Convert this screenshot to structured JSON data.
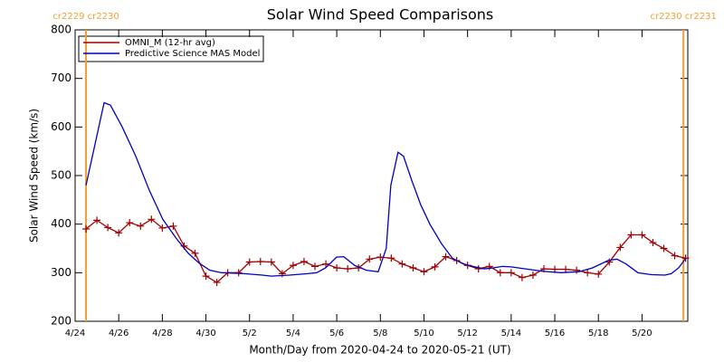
{
  "chart_data": {
    "type": "line",
    "title": "Solar Wind Speed Comparisons",
    "x_label": "Month/Day from 2020-04-24 to 2020-05-21 (UT)",
    "y_label": "Solar Wind Speed (km/s)",
    "xlim": [
      0,
      28.1
    ],
    "ylim": [
      200,
      800
    ],
    "yticks": [
      200,
      300,
      400,
      500,
      600,
      700,
      800
    ],
    "xticks": [
      {
        "value": 0,
        "label": "4/24"
      },
      {
        "value": 2,
        "label": "4/26"
      },
      {
        "value": 4,
        "label": "4/28"
      },
      {
        "value": 6,
        "label": "4/30"
      },
      {
        "value": 8,
        "label": "5/2"
      },
      {
        "value": 10,
        "label": "5/4"
      },
      {
        "value": 12,
        "label": "5/6"
      },
      {
        "value": 14,
        "label": "5/8"
      },
      {
        "value": 16,
        "label": "5/10"
      },
      {
        "value": 18,
        "label": "5/12"
      },
      {
        "value": 20,
        "label": "5/14"
      },
      {
        "value": 22,
        "label": "5/16"
      },
      {
        "value": 24,
        "label": "5/18"
      },
      {
        "value": 26,
        "label": "5/20"
      }
    ],
    "boundaries": [
      {
        "x": 0.5,
        "label": "cr2229 cr2230"
      },
      {
        "x": 27.9,
        "label": "cr2230 cr2231"
      }
    ],
    "boundary_color": "#f0a030",
    "series": [
      {
        "name": "OMNI_M (12-hr avg)",
        "color": "#a00000",
        "markers": true,
        "x": [
          0.5,
          1,
          1.5,
          2,
          2.5,
          3,
          3.5,
          4,
          4.5,
          5,
          5.5,
          6,
          6.5,
          7,
          7.5,
          8,
          8.5,
          9,
          9.5,
          10,
          10.5,
          11,
          11.5,
          12,
          12.5,
          13,
          13.5,
          14,
          14.5,
          15,
          15.5,
          16,
          16.5,
          17,
          17.5,
          18,
          18.5,
          19,
          19.5,
          20,
          20.5,
          21,
          21.5,
          22,
          22.5,
          23,
          23.5,
          24,
          24.5,
          25,
          25.5,
          26,
          26.5,
          27,
          27.5,
          28
        ],
        "values": [
          390,
          408,
          393,
          382,
          403,
          396,
          410,
          392,
          396,
          355,
          340,
          293,
          280,
          300,
          300,
          322,
          323,
          322,
          298,
          315,
          323,
          313,
          318,
          310,
          308,
          310,
          328,
          332,
          330,
          318,
          310,
          302,
          312,
          333,
          325,
          315,
          308,
          313,
          300,
          300,
          290,
          295,
          308,
          307,
          307,
          305,
          300,
          297,
          322,
          352,
          378,
          378,
          362,
          350,
          335,
          330
        ]
      },
      {
        "name": "Predictive Science MAS Model",
        "color": "#0000c0",
        "markers": false,
        "x": [
          0.5,
          1.33,
          1.62,
          2.16,
          2.78,
          3.4,
          4.02,
          4.65,
          5.19,
          5.68,
          6.18,
          6.72,
          7.76,
          8.59,
          9,
          9.83,
          10.66,
          11.08,
          11.49,
          11.99,
          12.32,
          12.82,
          13.36,
          13.9,
          14.27,
          14.48,
          14.81,
          15.06,
          15.44,
          15.85,
          16.27,
          16.8,
          17.3,
          17.8,
          18.34,
          18.76,
          19.17,
          19.59,
          20,
          20.62,
          21.45,
          22.28,
          23.11,
          23.73,
          24.44,
          24.85,
          25.27,
          25.81,
          26.43,
          27.05,
          27.34,
          27.68,
          28.01
        ],
        "values": [
          480,
          650,
          645,
          600,
          540,
          470,
          410,
          370,
          340,
          320,
          305,
          300,
          298,
          295,
          293,
          295,
          298,
          300,
          310,
          332,
          333,
          315,
          305,
          302,
          350,
          480,
          548,
          540,
          490,
          440,
          400,
          360,
          330,
          318,
          312,
          308,
          310,
          313,
          312,
          308,
          303,
          300,
          302,
          310,
          325,
          328,
          318,
          300,
          296,
          295,
          298,
          310,
          330
        ]
      }
    ]
  }
}
